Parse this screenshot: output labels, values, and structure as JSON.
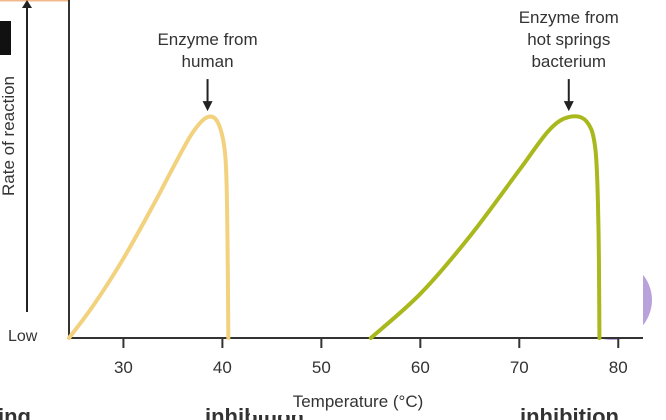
{
  "chart_data": {
    "type": "line",
    "xlabel": "Temperature (°C)",
    "ylabel": "Rate of reaction",
    "y_low_label": "Low",
    "xlim": [
      24.5,
      82.5
    ],
    "ylim": [
      0,
      1.53
    ],
    "xticks": [
      30,
      40,
      50,
      60,
      70,
      80
    ],
    "grid": false,
    "series": [
      {
        "name": "Enzyme from human",
        "label_lines": [
          "Enzyme from",
          "human"
        ],
        "color": "#f2d27e",
        "peak": 38.5,
        "points": [
          [
            24.5,
            0
          ],
          [
            27,
            0.15
          ],
          [
            30,
            0.36
          ],
          [
            33,
            0.6
          ],
          [
            35,
            0.77
          ],
          [
            37,
            0.93
          ],
          [
            38.5,
            1.0
          ],
          [
            39.6,
            0.97
          ],
          [
            40.3,
            0.82
          ],
          [
            40.5,
            0.5
          ],
          [
            40.6,
            0
          ]
        ]
      },
      {
        "name": "Enzyme from hot springs bacterium",
        "label_lines": [
          "Enzyme from",
          "hot springs",
          "bacterium"
        ],
        "color": "#a9b81c",
        "peak": 75,
        "points": [
          [
            55,
            0
          ],
          [
            60,
            0.2
          ],
          [
            65,
            0.46
          ],
          [
            70,
            0.76
          ],
          [
            73,
            0.94
          ],
          [
            75,
            1.0
          ],
          [
            76.8,
            0.98
          ],
          [
            77.7,
            0.85
          ],
          [
            78,
            0.5
          ],
          [
            78.1,
            0
          ]
        ]
      }
    ]
  },
  "background_fragments": {
    "bottom_left": "ing",
    "bottom_middle": "inhibition",
    "bottom_right": "inhibition"
  }
}
